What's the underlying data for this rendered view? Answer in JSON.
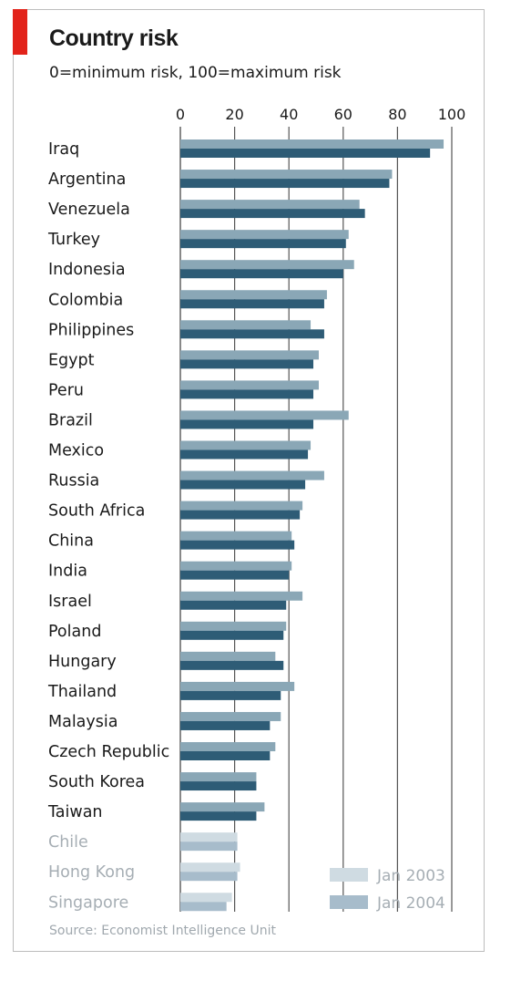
{
  "title": "Country risk",
  "subtitle": "0=minimum risk, 100=maximum risk",
  "source": "Source: Economist Intelligence Unit",
  "colors": {
    "accent": "#e2231a",
    "jan2003": "#8aa7b6",
    "jan2004": "#2e5c76",
    "jan2003_faded": "#cfdbe2",
    "jan2004_faded": "#a7bccb",
    "gridline": "#555555"
  },
  "chart_data": {
    "type": "bar",
    "orientation": "horizontal",
    "title": "Country risk",
    "subtitle": "0=minimum risk, 100=maximum risk",
    "xlim": [
      0,
      100
    ],
    "xticks": [
      "0",
      "20",
      "40",
      "60",
      "80",
      "100"
    ],
    "grid": true,
    "legend_position": "bottom-right",
    "categories": [
      "Iraq",
      "Argentina",
      "Venezuela",
      "Turkey",
      "Indonesia",
      "Colombia",
      "Philippines",
      "Egypt",
      "Peru",
      "Brazil",
      "Mexico",
      "Russia",
      "South Africa",
      "China",
      "India",
      "Israel",
      "Poland",
      "Hungary",
      "Thailand",
      "Malaysia",
      "Czech Republic",
      "South Korea",
      "Taiwan",
      "Chile",
      "Hong Kong",
      "Singapore"
    ],
    "faded_categories": [
      "Chile",
      "Hong Kong",
      "Singapore"
    ],
    "series": [
      {
        "name": "Jan 2003",
        "values": [
          97,
          78,
          66,
          62,
          64,
          54,
          48,
          51,
          51,
          62,
          48,
          53,
          45,
          41,
          41,
          45,
          39,
          35,
          42,
          37,
          35,
          28,
          31,
          21,
          22,
          19
        ]
      },
      {
        "name": "Jan 2004",
        "values": [
          92,
          77,
          68,
          61,
          60,
          53,
          53,
          49,
          49,
          49,
          47,
          46,
          44,
          42,
          40,
          39,
          38,
          38,
          37,
          33,
          33,
          28,
          28,
          21,
          21,
          17
        ]
      }
    ]
  }
}
